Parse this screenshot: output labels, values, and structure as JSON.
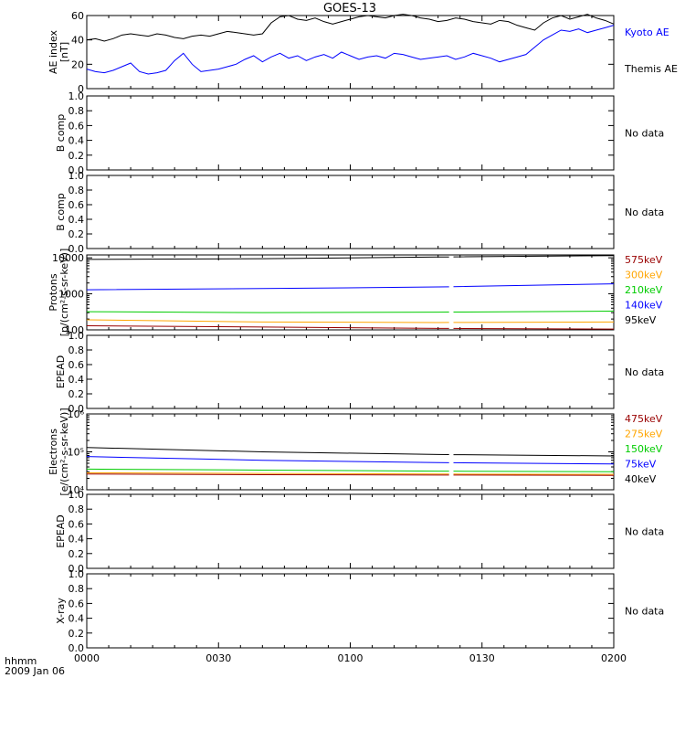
{
  "title": "GOES-13",
  "footer": {
    "time_label": "hhmm",
    "date_label": "2009 Jan 06"
  },
  "x_axis": {
    "range_minutes": [
      0,
      120
    ],
    "ticks": [
      {
        "m": 0,
        "label": "0000"
      },
      {
        "m": 30,
        "label": "0030"
      },
      {
        "m": 60,
        "label": "0100"
      },
      {
        "m": 90,
        "label": "0130"
      },
      {
        "m": 120,
        "label": "0200"
      }
    ],
    "data_gap_minutes": [
      82.5,
      83.5
    ]
  },
  "chart_data": [
    {
      "type": "line",
      "id": "ae",
      "ylabel": [
        "AE index",
        "[nT]"
      ],
      "ylim": [
        0,
        60
      ],
      "yticks": [
        0,
        20,
        40,
        60
      ],
      "legend": [
        "Kyoto AE",
        "Themis AE"
      ],
      "legend_colors": [
        "#0000ff",
        "#000000"
      ],
      "series": [
        {
          "name": "Kyoto AE",
          "color": "#0000ff",
          "x": [
            0,
            2,
            4,
            6,
            8,
            10,
            12,
            14,
            16,
            18,
            20,
            22,
            24,
            26,
            28,
            30,
            32,
            34,
            36,
            38,
            40,
            42,
            44,
            46,
            48,
            50,
            52,
            54,
            56,
            58,
            60,
            62,
            64,
            66,
            68,
            70,
            72,
            74,
            76,
            78,
            80,
            82,
            84,
            86,
            88,
            90,
            92,
            94,
            96,
            98,
            100,
            102,
            104,
            106,
            108,
            110,
            112,
            114,
            116,
            118,
            120
          ],
          "values": [
            16,
            14,
            13,
            15,
            18,
            21,
            14,
            12,
            13,
            15,
            23,
            29,
            20,
            14,
            15,
            16,
            18,
            20,
            24,
            27,
            22,
            26,
            29,
            25,
            27,
            23,
            26,
            28,
            25,
            30,
            27,
            24,
            26,
            27,
            25,
            29,
            28,
            26,
            24,
            25,
            26,
            27,
            24,
            26,
            29,
            27,
            25,
            22,
            24,
            26,
            28,
            34,
            40,
            44,
            48,
            47,
            49,
            46,
            48,
            50,
            52
          ]
        },
        {
          "name": "Themis AE",
          "color": "#000000",
          "x": [
            0,
            2,
            4,
            6,
            8,
            10,
            12,
            14,
            16,
            18,
            20,
            22,
            24,
            26,
            28,
            30,
            32,
            34,
            36,
            38,
            40,
            42,
            44,
            46,
            48,
            50,
            52,
            54,
            56,
            58,
            60,
            62,
            64,
            66,
            68,
            70,
            72,
            74,
            76,
            78,
            80,
            82,
            84,
            86,
            88,
            90,
            92,
            94,
            96,
            98,
            100,
            102,
            104,
            106,
            108,
            110,
            112,
            114,
            116,
            118,
            120
          ],
          "values": [
            40,
            41,
            39,
            41,
            44,
            45,
            44,
            43,
            45,
            44,
            42,
            41,
            43,
            44,
            43,
            45,
            47,
            46,
            45,
            44,
            45,
            54,
            59,
            60,
            57,
            56,
            58,
            55,
            53,
            55,
            57,
            59,
            60,
            59,
            58,
            60,
            61,
            60,
            58,
            57,
            55,
            56,
            58,
            57,
            55,
            54,
            53,
            56,
            55,
            52,
            50,
            48,
            54,
            58,
            60,
            57,
            59,
            61,
            58,
            56,
            53
          ]
        }
      ]
    },
    {
      "type": "line",
      "id": "bcomp1",
      "ylabel": [
        "B comp"
      ],
      "ylim": [
        0,
        1
      ],
      "yticks": [
        0,
        0.2,
        0.4,
        0.6,
        0.8,
        1.0
      ],
      "ytick_labels": [
        "0.0",
        "0.2",
        "0.4",
        "0.6",
        "0.8",
        "1.0"
      ],
      "note": "No data"
    },
    {
      "type": "line",
      "id": "bcomp2",
      "ylabel": [
        "B comp"
      ],
      "ylim": [
        0,
        1
      ],
      "yticks": [
        0,
        0.2,
        0.4,
        0.6,
        0.8,
        1.0
      ],
      "ytick_labels": [
        "0.0",
        "0.2",
        "0.4",
        "0.6",
        "0.8",
        "1.0"
      ],
      "note": "No data"
    },
    {
      "type": "line",
      "id": "protons",
      "ylabel": [
        "Protons",
        "[p/(cm²-s-sr-keV)]"
      ],
      "yscale": "log",
      "ylim": [
        100,
        12000
      ],
      "yticks": [
        100,
        1000,
        10000
      ],
      "ytick_labels": [
        "100",
        "1000",
        "10000"
      ],
      "legend": [
        "575keV",
        "300keV",
        "210keV",
        "140keV",
        "95keV"
      ],
      "legend_colors": [
        "#990000",
        "#ffa500",
        "#00cc00",
        "#0000ff",
        "#000000"
      ],
      "series": [
        {
          "name": "95keV",
          "color": "#000000",
          "x": [
            0,
            40,
            80,
            120
          ],
          "values": [
            9000,
            9400,
            10500,
            11500
          ]
        },
        {
          "name": "140keV",
          "color": "#0000ff",
          "x": [
            0,
            40,
            80,
            120
          ],
          "values": [
            1300,
            1400,
            1550,
            1900
          ]
        },
        {
          "name": "210keV",
          "color": "#00cc00",
          "x": [
            0,
            40,
            80,
            120
          ],
          "values": [
            320,
            300,
            310,
            330
          ]
        },
        {
          "name": "300keV",
          "color": "#ffa500",
          "x": [
            0,
            40,
            80,
            120
          ],
          "values": [
            190,
            165,
            160,
            165
          ]
        },
        {
          "name": "575keV",
          "color": "#990000",
          "x": [
            0,
            40,
            80,
            120
          ],
          "values": [
            130,
            120,
            110,
            105
          ]
        }
      ]
    },
    {
      "type": "line",
      "id": "epead1",
      "ylabel": [
        "EPEAD"
      ],
      "ylim": [
        0,
        1
      ],
      "yticks": [
        0,
        0.2,
        0.4,
        0.6,
        0.8,
        1.0
      ],
      "ytick_labels": [
        "0.0",
        "0.2",
        "0.4",
        "0.6",
        "0.8",
        "1.0"
      ],
      "note": "No data"
    },
    {
      "type": "line",
      "id": "electrons",
      "ylabel": [
        "Electrons",
        "[e/(cm²-s-sr-keV)]"
      ],
      "yscale": "log",
      "ylim": [
        10000,
        1000000
      ],
      "yticks": [
        10000,
        100000,
        1000000
      ],
      "ytick_labels": [
        "10⁴",
        "10⁵",
        "10⁶"
      ],
      "legend": [
        "475keV",
        "275keV",
        "150keV",
        "75keV",
        "40keV"
      ],
      "legend_colors": [
        "#990000",
        "#ffa500",
        "#00cc00",
        "#0000ff",
        "#000000"
      ],
      "series": [
        {
          "name": "40keV",
          "color": "#000000",
          "x": [
            0,
            40,
            80,
            120
          ],
          "values": [
            130000,
            100000,
            85000,
            78000
          ]
        },
        {
          "name": "75keV",
          "color": "#0000ff",
          "x": [
            0,
            40,
            80,
            120
          ],
          "values": [
            75000,
            60000,
            52000,
            48000
          ]
        },
        {
          "name": "150keV",
          "color": "#00cc00",
          "x": [
            0,
            40,
            80,
            120
          ],
          "values": [
            35000,
            33000,
            31000,
            30000
          ]
        },
        {
          "name": "275keV",
          "color": "#ffa500",
          "x": [
            0,
            40,
            80,
            120
          ],
          "values": [
            28000,
            27000,
            26000,
            25500
          ]
        },
        {
          "name": "475keV",
          "color": "#990000",
          "x": [
            0,
            40,
            80,
            120
          ],
          "values": [
            26000,
            25000,
            24500,
            24000
          ]
        }
      ]
    },
    {
      "type": "line",
      "id": "epead2",
      "ylabel": [
        "EPEAD"
      ],
      "ylim": [
        0,
        1
      ],
      "yticks": [
        0,
        0.2,
        0.4,
        0.6,
        0.8,
        1.0
      ],
      "ytick_labels": [
        "0.0",
        "0.2",
        "0.4",
        "0.6",
        "0.8",
        "1.0"
      ],
      "note": "No data"
    },
    {
      "type": "line",
      "id": "xray",
      "ylabel": [
        "X-ray"
      ],
      "ylim": [
        0,
        1
      ],
      "yticks": [
        0,
        0.2,
        0.4,
        0.6,
        0.8,
        1.0
      ],
      "ytick_labels": [
        "0.0",
        "0.2",
        "0.4",
        "0.6",
        "0.8",
        "1.0"
      ],
      "note": "No data"
    }
  ]
}
